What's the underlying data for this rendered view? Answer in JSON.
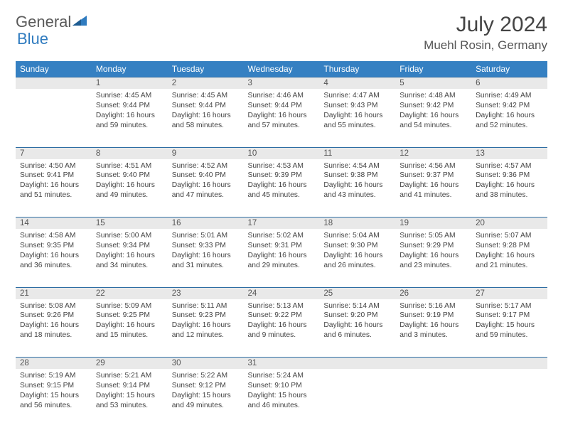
{
  "brand": {
    "part1": "General",
    "part2": "Blue"
  },
  "title": "July 2024",
  "location": "Muehl Rosin, Germany",
  "colors": {
    "header_bg": "#3580c2",
    "header_text": "#ffffff",
    "daynum_bg": "#e9e9e9",
    "border": "#2d6da3",
    "text": "#444444",
    "brand_gray": "#5a5a5a",
    "brand_blue": "#2f7bbf"
  },
  "weekdays": [
    "Sunday",
    "Monday",
    "Tuesday",
    "Wednesday",
    "Thursday",
    "Friday",
    "Saturday"
  ],
  "weeks": [
    {
      "nums": [
        "",
        "1",
        "2",
        "3",
        "4",
        "5",
        "6"
      ],
      "cells": [
        null,
        {
          "sunrise": "Sunrise: 4:45 AM",
          "sunset": "Sunset: 9:44 PM",
          "day1": "Daylight: 16 hours",
          "day2": "and 59 minutes."
        },
        {
          "sunrise": "Sunrise: 4:45 AM",
          "sunset": "Sunset: 9:44 PM",
          "day1": "Daylight: 16 hours",
          "day2": "and 58 minutes."
        },
        {
          "sunrise": "Sunrise: 4:46 AM",
          "sunset": "Sunset: 9:44 PM",
          "day1": "Daylight: 16 hours",
          "day2": "and 57 minutes."
        },
        {
          "sunrise": "Sunrise: 4:47 AM",
          "sunset": "Sunset: 9:43 PM",
          "day1": "Daylight: 16 hours",
          "day2": "and 55 minutes."
        },
        {
          "sunrise": "Sunrise: 4:48 AM",
          "sunset": "Sunset: 9:42 PM",
          "day1": "Daylight: 16 hours",
          "day2": "and 54 minutes."
        },
        {
          "sunrise": "Sunrise: 4:49 AM",
          "sunset": "Sunset: 9:42 PM",
          "day1": "Daylight: 16 hours",
          "day2": "and 52 minutes."
        }
      ]
    },
    {
      "nums": [
        "7",
        "8",
        "9",
        "10",
        "11",
        "12",
        "13"
      ],
      "cells": [
        {
          "sunrise": "Sunrise: 4:50 AM",
          "sunset": "Sunset: 9:41 PM",
          "day1": "Daylight: 16 hours",
          "day2": "and 51 minutes."
        },
        {
          "sunrise": "Sunrise: 4:51 AM",
          "sunset": "Sunset: 9:40 PM",
          "day1": "Daylight: 16 hours",
          "day2": "and 49 minutes."
        },
        {
          "sunrise": "Sunrise: 4:52 AM",
          "sunset": "Sunset: 9:40 PM",
          "day1": "Daylight: 16 hours",
          "day2": "and 47 minutes."
        },
        {
          "sunrise": "Sunrise: 4:53 AM",
          "sunset": "Sunset: 9:39 PM",
          "day1": "Daylight: 16 hours",
          "day2": "and 45 minutes."
        },
        {
          "sunrise": "Sunrise: 4:54 AM",
          "sunset": "Sunset: 9:38 PM",
          "day1": "Daylight: 16 hours",
          "day2": "and 43 minutes."
        },
        {
          "sunrise": "Sunrise: 4:56 AM",
          "sunset": "Sunset: 9:37 PM",
          "day1": "Daylight: 16 hours",
          "day2": "and 41 minutes."
        },
        {
          "sunrise": "Sunrise: 4:57 AM",
          "sunset": "Sunset: 9:36 PM",
          "day1": "Daylight: 16 hours",
          "day2": "and 38 minutes."
        }
      ]
    },
    {
      "nums": [
        "14",
        "15",
        "16",
        "17",
        "18",
        "19",
        "20"
      ],
      "cells": [
        {
          "sunrise": "Sunrise: 4:58 AM",
          "sunset": "Sunset: 9:35 PM",
          "day1": "Daylight: 16 hours",
          "day2": "and 36 minutes."
        },
        {
          "sunrise": "Sunrise: 5:00 AM",
          "sunset": "Sunset: 9:34 PM",
          "day1": "Daylight: 16 hours",
          "day2": "and 34 minutes."
        },
        {
          "sunrise": "Sunrise: 5:01 AM",
          "sunset": "Sunset: 9:33 PM",
          "day1": "Daylight: 16 hours",
          "day2": "and 31 minutes."
        },
        {
          "sunrise": "Sunrise: 5:02 AM",
          "sunset": "Sunset: 9:31 PM",
          "day1": "Daylight: 16 hours",
          "day2": "and 29 minutes."
        },
        {
          "sunrise": "Sunrise: 5:04 AM",
          "sunset": "Sunset: 9:30 PM",
          "day1": "Daylight: 16 hours",
          "day2": "and 26 minutes."
        },
        {
          "sunrise": "Sunrise: 5:05 AM",
          "sunset": "Sunset: 9:29 PM",
          "day1": "Daylight: 16 hours",
          "day2": "and 23 minutes."
        },
        {
          "sunrise": "Sunrise: 5:07 AM",
          "sunset": "Sunset: 9:28 PM",
          "day1": "Daylight: 16 hours",
          "day2": "and 21 minutes."
        }
      ]
    },
    {
      "nums": [
        "21",
        "22",
        "23",
        "24",
        "25",
        "26",
        "27"
      ],
      "cells": [
        {
          "sunrise": "Sunrise: 5:08 AM",
          "sunset": "Sunset: 9:26 PM",
          "day1": "Daylight: 16 hours",
          "day2": "and 18 minutes."
        },
        {
          "sunrise": "Sunrise: 5:09 AM",
          "sunset": "Sunset: 9:25 PM",
          "day1": "Daylight: 16 hours",
          "day2": "and 15 minutes."
        },
        {
          "sunrise": "Sunrise: 5:11 AM",
          "sunset": "Sunset: 9:23 PM",
          "day1": "Daylight: 16 hours",
          "day2": "and 12 minutes."
        },
        {
          "sunrise": "Sunrise: 5:13 AM",
          "sunset": "Sunset: 9:22 PM",
          "day1": "Daylight: 16 hours",
          "day2": "and 9 minutes."
        },
        {
          "sunrise": "Sunrise: 5:14 AM",
          "sunset": "Sunset: 9:20 PM",
          "day1": "Daylight: 16 hours",
          "day2": "and 6 minutes."
        },
        {
          "sunrise": "Sunrise: 5:16 AM",
          "sunset": "Sunset: 9:19 PM",
          "day1": "Daylight: 16 hours",
          "day2": "and 3 minutes."
        },
        {
          "sunrise": "Sunrise: 5:17 AM",
          "sunset": "Sunset: 9:17 PM",
          "day1": "Daylight: 15 hours",
          "day2": "and 59 minutes."
        }
      ]
    },
    {
      "nums": [
        "28",
        "29",
        "30",
        "31",
        "",
        "",
        ""
      ],
      "cells": [
        {
          "sunrise": "Sunrise: 5:19 AM",
          "sunset": "Sunset: 9:15 PM",
          "day1": "Daylight: 15 hours",
          "day2": "and 56 minutes."
        },
        {
          "sunrise": "Sunrise: 5:21 AM",
          "sunset": "Sunset: 9:14 PM",
          "day1": "Daylight: 15 hours",
          "day2": "and 53 minutes."
        },
        {
          "sunrise": "Sunrise: 5:22 AM",
          "sunset": "Sunset: 9:12 PM",
          "day1": "Daylight: 15 hours",
          "day2": "and 49 minutes."
        },
        {
          "sunrise": "Sunrise: 5:24 AM",
          "sunset": "Sunset: 9:10 PM",
          "day1": "Daylight: 15 hours",
          "day2": "and 46 minutes."
        },
        null,
        null,
        null
      ]
    }
  ]
}
